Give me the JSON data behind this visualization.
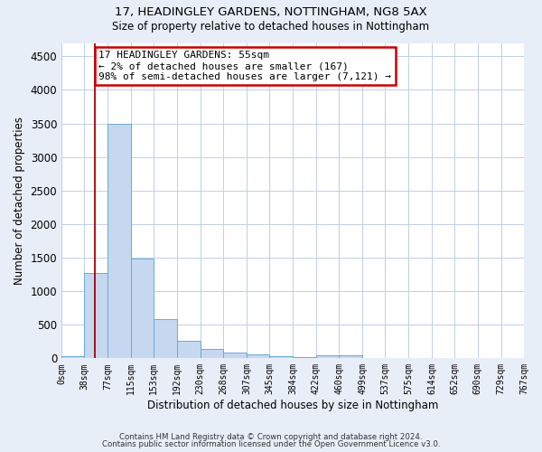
{
  "title_line1": "17, HEADINGLEY GARDENS, NOTTINGHAM, NG8 5AX",
  "title_line2": "Size of property relative to detached houses in Nottingham",
  "xlabel": "Distribution of detached houses by size in Nottingham",
  "ylabel": "Number of detached properties",
  "bar_color": "#c5d8f0",
  "bar_edge_color": "#6aaad4",
  "vline_color": "#aa0000",
  "vline_x": 55,
  "annotation_text": "17 HEADINGLEY GARDENS: 55sqm\n← 2% of detached houses are smaller (167)\n98% of semi-detached houses are larger (7,121) →",
  "annotation_box_color": "#cc0000",
  "bin_edges": [
    0,
    38,
    77,
    115,
    153,
    192,
    230,
    268,
    307,
    345,
    384,
    422,
    460,
    499,
    537,
    575,
    614,
    652,
    690,
    729,
    767
  ],
  "bar_heights": [
    30,
    1270,
    3500,
    1480,
    580,
    255,
    140,
    90,
    55,
    30,
    20,
    45,
    45,
    0,
    0,
    0,
    0,
    0,
    0,
    0
  ],
  "ylim": [
    0,
    4700
  ],
  "yticks": [
    0,
    500,
    1000,
    1500,
    2000,
    2500,
    3000,
    3500,
    4000,
    4500
  ],
  "footer_line1": "Contains HM Land Registry data © Crown copyright and database right 2024.",
  "footer_line2": "Contains public sector information licensed under the Open Government Licence v3.0.",
  "background_color": "#e8eef8",
  "plot_bg_color": "#ffffff",
  "grid_color": "#c0cfe8"
}
